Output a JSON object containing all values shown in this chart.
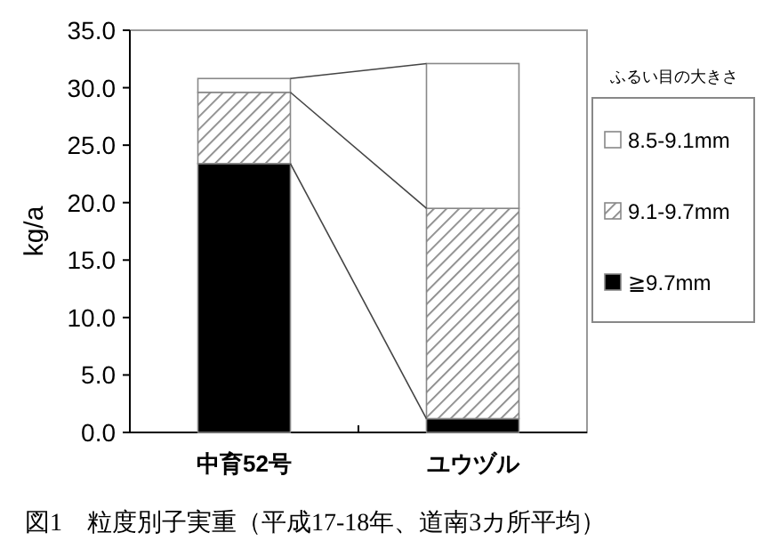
{
  "chart_data": {
    "type": "bar",
    "stacked": true,
    "title": "図1　粒度別子実重（平成17-18年、道南3カ所平均）",
    "ylabel": "kg/a",
    "legend_title": "ふるい目の大きさ",
    "legend": "right",
    "categories": [
      "中育52号",
      "ユウヅル"
    ],
    "series": [
      {
        "name": "≧9.7mm",
        "color": "#000000",
        "values": [
          23.4,
          1.2
        ]
      },
      {
        "name": "9.1-9.7mm",
        "color": "#888888",
        "values": [
          6.2,
          18.3
        ]
      },
      {
        "name": "8.5-9.1mm",
        "color": "#ffffff",
        "values": [
          1.2,
          12.6
        ]
      }
    ],
    "ylim": [
      0,
      35
    ],
    "yticks": [
      {
        "value": 0,
        "label": "0.0"
      },
      {
        "value": 5,
        "label": "5.0"
      },
      {
        "value": 10,
        "label": "10.0"
      },
      {
        "value": 15,
        "label": "15.0"
      },
      {
        "value": 20,
        "label": "20.0"
      },
      {
        "value": 25,
        "label": "25.0"
      },
      {
        "value": 30,
        "label": "30.0"
      },
      {
        "value": 35,
        "label": "35.0"
      }
    ]
  }
}
